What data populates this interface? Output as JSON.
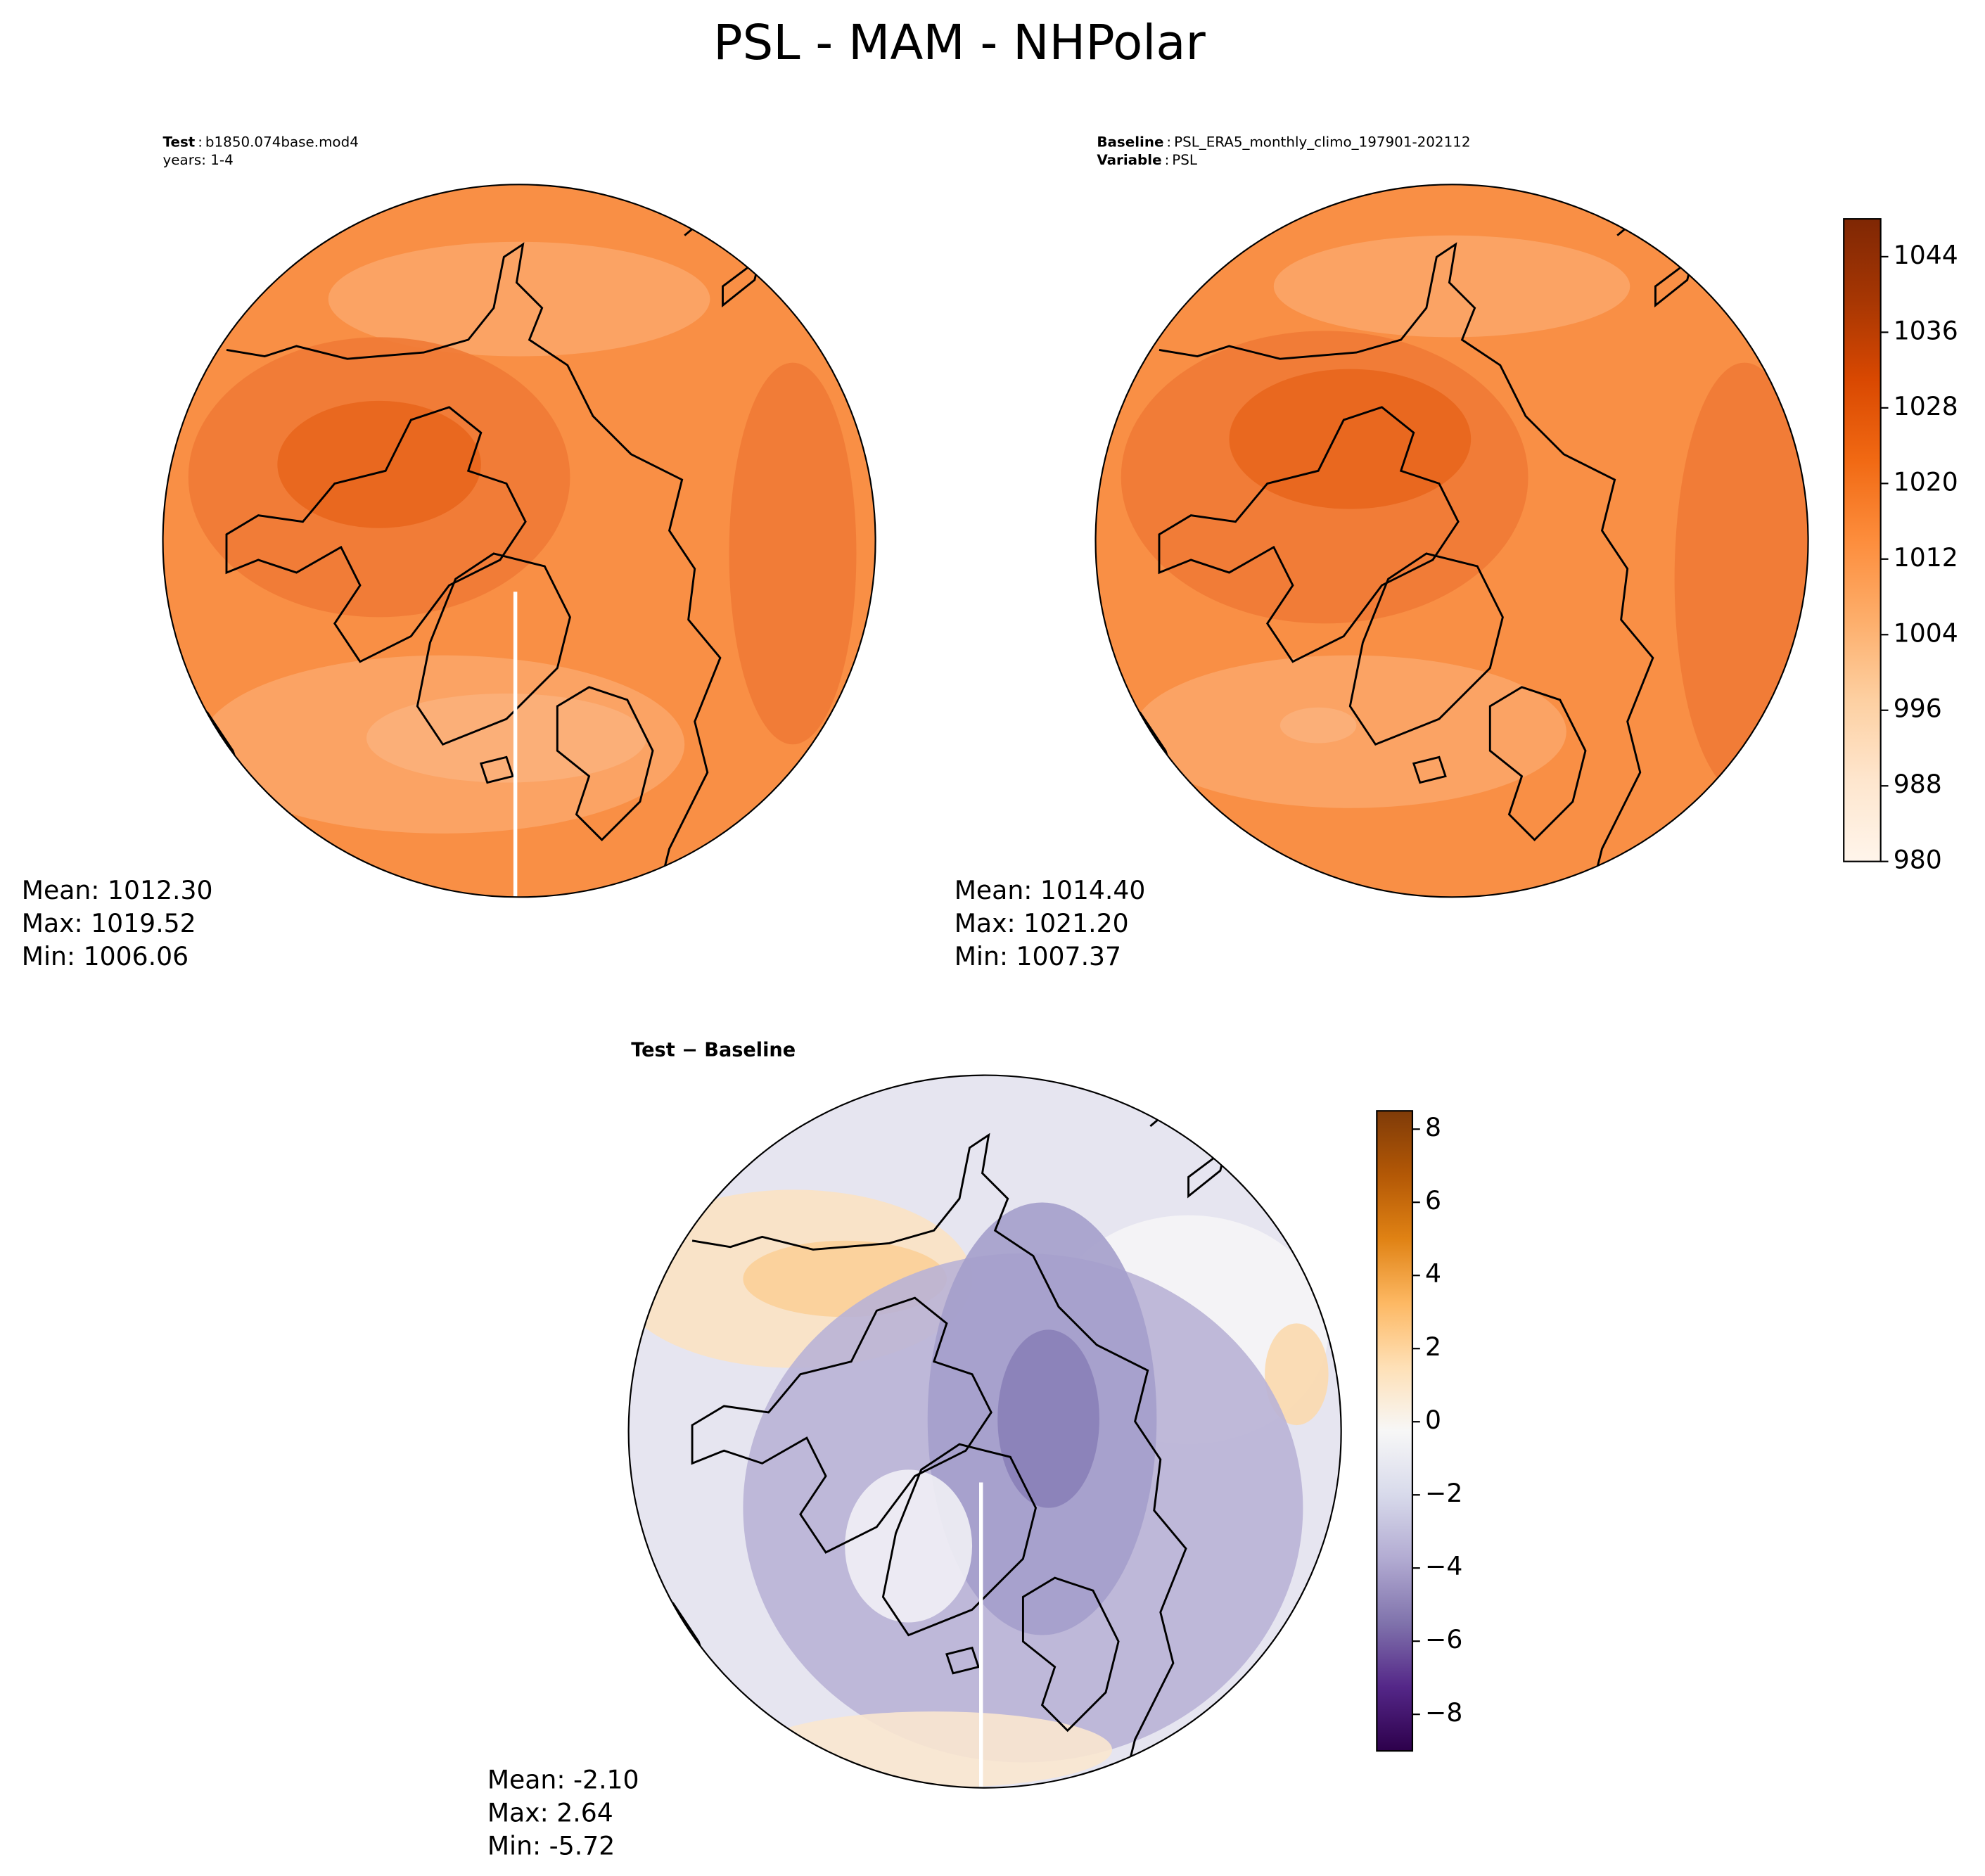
{
  "title": "PSL - MAM - NHPolar",
  "panels": [
    {
      "type": "polar-contour",
      "header": [
        {
          "label": "Test",
          "value": "b1850.074base.mod4"
        },
        {
          "value": "years: 1-4"
        }
      ],
      "stats": [
        "Mean: 1012.30",
        "Max: 1019.52",
        "Min: 1006.06"
      ]
    },
    {
      "type": "polar-contour",
      "header": [
        {
          "label": "Baseline",
          "value": "PSL_ERA5_monthly_climo_197901-202112"
        },
        {
          "label": "Variable",
          "value": "PSL"
        }
      ],
      "stats": [
        "Mean: 1014.40",
        "Max: 1021.20",
        "Min: 1007.37"
      ]
    },
    {
      "type": "polar-contour",
      "title": "Test − Baseline",
      "stats": [
        "Mean: -2.10",
        "Max:  2.64",
        "Min: -5.72"
      ]
    }
  ],
  "colorbars": [
    {
      "ylim": [
        980,
        1048
      ],
      "yticks": [
        980,
        988,
        996,
        1004,
        1012,
        1020,
        1028,
        1036,
        1044
      ],
      "colormap": [
        "#fff5eb",
        "#fee6ce",
        "#fdd0a2",
        "#fdae6b",
        "#fd8d3c",
        "#f16913",
        "#d94801",
        "#a63603",
        "#7f2704"
      ]
    },
    {
      "ylim": [
        -9,
        8.5
      ],
      "yticks": [
        {
          "value": -8,
          "label": "−8"
        },
        {
          "value": -6,
          "label": "−6"
        },
        {
          "value": -4,
          "label": "−4"
        },
        {
          "value": -2,
          "label": "−2"
        },
        0,
        2,
        4,
        6,
        8
      ],
      "colormap": [
        "#2d004b",
        "#542788",
        "#8073ac",
        "#b2abd2",
        "#d8daeb",
        "#f7f7f7",
        "#fee0b6",
        "#fdb863",
        "#e08214",
        "#b35806",
        "#7f3b08"
      ]
    }
  ]
}
